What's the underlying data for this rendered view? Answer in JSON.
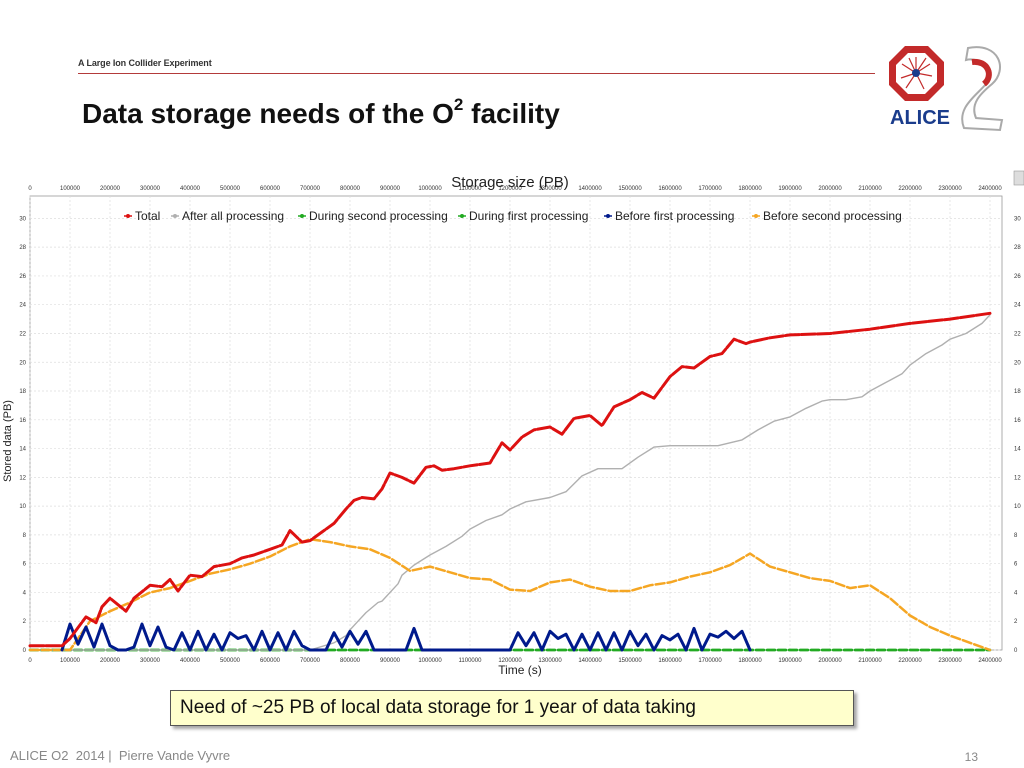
{
  "header": {
    "tagline": "A Large Ion Collider Experiment",
    "title_main": "Data storage needs of the O",
    "title_sup": "2",
    "title_tail": " facility",
    "logo_text": "ALICE"
  },
  "callout": "Need of ~25 PB of local data storage for 1 year of data taking",
  "footer": {
    "left": "ALICE O2  2014 |  Pierre Vande Vyvre",
    "page": "13"
  },
  "colors": {
    "accent": "#b33a3a",
    "total": "#dd1111",
    "after": "#b0b0b0",
    "second": "#22aa22",
    "first": "#22aa22",
    "before_first": "#001a8c",
    "before_second": "#f5a623"
  },
  "chart_data": {
    "type": "line",
    "title": "Storage size (PB)",
    "xlabel": "Time (s)",
    "ylabel": "Stored data (PB)",
    "xlim": [
      0,
      2430000
    ],
    "ylim": [
      0,
      31
    ],
    "x_ticks": [
      0,
      100000,
      200000,
      300000,
      400000,
      500000,
      600000,
      700000,
      800000,
      900000,
      1000000,
      1100000,
      1200000,
      1300000,
      1400000,
      1500000,
      1600000,
      1700000,
      1800000,
      1900000,
      2000000,
      2100000,
      2200000,
      2300000,
      2400000
    ],
    "y_ticks": [
      0,
      2,
      4,
      6,
      8,
      10,
      12,
      14,
      16,
      18,
      20,
      22,
      24,
      26,
      28,
      30
    ],
    "grid": true,
    "legend_position": "top",
    "series": [
      {
        "name": "Total",
        "x": [
          0,
          50000,
          60000,
          80000,
          100000,
          140000,
          165000,
          180000,
          200000,
          240000,
          260000,
          300000,
          330000,
          350000,
          370000,
          400000,
          430000,
          460000,
          500000,
          530000,
          560000,
          600000,
          630000,
          650000,
          680000,
          700000,
          730000,
          760000,
          790000,
          810000,
          830000,
          860000,
          880000,
          900000,
          930000,
          960000,
          990000,
          1010000,
          1030000,
          1060000,
          1100000,
          1150000,
          1180000,
          1200000,
          1230000,
          1260000,
          1300000,
          1330000,
          1360000,
          1400000,
          1430000,
          1460000,
          1500000,
          1530000,
          1560000,
          1600000,
          1630000,
          1660000,
          1700000,
          1730000,
          1760000,
          1790000,
          1800000,
          1850000,
          1900000,
          2000000,
          2100000,
          2200000,
          2300000,
          2400000
        ],
        "y": [
          0.3,
          0.3,
          0.3,
          0.3,
          0.8,
          2.3,
          1.9,
          3.0,
          3.6,
          2.7,
          3.6,
          4.5,
          4.4,
          4.9,
          4.1,
          5.2,
          5.1,
          5.8,
          6.0,
          6.4,
          6.6,
          7.0,
          7.3,
          8.3,
          7.5,
          7.6,
          8.2,
          8.8,
          9.8,
          10.4,
          10.6,
          10.5,
          11.2,
          12.3,
          12.0,
          11.6,
          12.7,
          12.8,
          12.5,
          12.6,
          12.8,
          13.0,
          14.4,
          13.9,
          14.8,
          15.3,
          15.5,
          15.0,
          16.1,
          16.3,
          15.6,
          16.9,
          17.4,
          17.9,
          17.5,
          19.0,
          19.7,
          19.6,
          20.4,
          20.6,
          21.6,
          21.3,
          21.4,
          21.7,
          21.9,
          22.0,
          22.3,
          22.7,
          23.0,
          23.4
        ]
      },
      {
        "name": "After all processing",
        "x": [
          0,
          700000,
          760000,
          790000,
          800000,
          820000,
          840000,
          870000,
          880000,
          920000,
          930000,
          960000,
          1000000,
          1040000,
          1080000,
          1100000,
          1140000,
          1180000,
          1200000,
          1240000,
          1300000,
          1340000,
          1380000,
          1420000,
          1480000,
          1520000,
          1560000,
          1600000,
          1640000,
          1680000,
          1720000,
          1780000,
          1820000,
          1860000,
          1900000,
          1940000,
          1980000,
          2000000,
          2040000,
          2080000,
          2100000,
          2140000,
          2180000,
          2200000,
          2240000,
          2280000,
          2300000,
          2340000,
          2380000,
          2400000
        ],
        "y": [
          0,
          0,
          0.5,
          1.0,
          1.4,
          2.0,
          2.6,
          3.3,
          3.4,
          4.6,
          5.2,
          5.9,
          6.6,
          7.2,
          7.9,
          8.4,
          9.0,
          9.4,
          9.8,
          10.3,
          10.6,
          11.0,
          12.1,
          12.6,
          12.6,
          13.4,
          14.1,
          14.2,
          14.2,
          14.2,
          14.2,
          14.6,
          15.3,
          15.9,
          16.2,
          16.8,
          17.3,
          17.4,
          17.4,
          17.6,
          18.0,
          18.6,
          19.2,
          19.8,
          20.6,
          21.2,
          21.6,
          22.0,
          22.7,
          23.3
        ]
      },
      {
        "name": "During second processing",
        "x": [
          0,
          2400000
        ],
        "y": [
          0,
          0
        ]
      },
      {
        "name": "During first processing",
        "x": [
          0,
          2400000
        ],
        "y": [
          0,
          0
        ]
      },
      {
        "name": "Before first processing",
        "x": [
          80000,
          100000,
          120000,
          140000,
          160000,
          180000,
          200000,
          220000,
          240000,
          260000,
          280000,
          300000,
          320000,
          340000,
          360000,
          380000,
          400000,
          420000,
          440000,
          460000,
          480000,
          500000,
          520000,
          540000,
          560000,
          580000,
          600000,
          620000,
          640000,
          660000,
          680000,
          700000,
          720000,
          740000,
          760000,
          780000,
          800000,
          820000,
          840000,
          860000,
          880000,
          900000,
          920000,
          940000,
          960000,
          980000,
          1000000,
          1020000,
          1040000,
          1060000,
          1080000,
          1100000,
          1120000,
          1140000,
          1160000,
          1180000,
          1200000,
          1220000,
          1240000,
          1260000,
          1280000,
          1300000,
          1320000,
          1340000,
          1360000,
          1380000,
          1400000,
          1420000,
          1440000,
          1460000,
          1480000,
          1500000,
          1520000,
          1540000,
          1560000,
          1580000,
          1600000,
          1620000,
          1640000,
          1660000,
          1680000,
          1700000,
          1720000,
          1740000,
          1760000,
          1780000,
          1800000
        ],
        "y": [
          0,
          1.8,
          0.4,
          1.6,
          0.2,
          1.8,
          0.3,
          0,
          0,
          0.2,
          1.8,
          0.3,
          1.6,
          0.2,
          0,
          1.2,
          0,
          1.3,
          0,
          1.1,
          0,
          1.2,
          0.8,
          1.0,
          0,
          1.3,
          0,
          1.2,
          0,
          1.3,
          0.3,
          0,
          0,
          0,
          1.2,
          0.2,
          1.3,
          0.4,
          1.3,
          0,
          0,
          0,
          0,
          0,
          1.5,
          0,
          0,
          0,
          0,
          0,
          0,
          0,
          0,
          0,
          0,
          0,
          0,
          1.2,
          0.3,
          1.2,
          0,
          1.3,
          0.8,
          1.1,
          0,
          1.1,
          0,
          1.2,
          0,
          1.2,
          0,
          1.3,
          0.3,
          1.1,
          0,
          1.0,
          0.7,
          1.1,
          0,
          1.5,
          0,
          1.1,
          0.9,
          1.3,
          0.8,
          1.3,
          0
        ]
      },
      {
        "name": "Before second processing",
        "x": [
          0,
          100000,
          150000,
          200000,
          250000,
          300000,
          350000,
          400000,
          450000,
          500000,
          550000,
          600000,
          650000,
          700000,
          750000,
          800000,
          850000,
          900000,
          950000,
          1000000,
          1050000,
          1100000,
          1150000,
          1200000,
          1250000,
          1300000,
          1350000,
          1400000,
          1450000,
          1500000,
          1550000,
          1600000,
          1650000,
          1700000,
          1750000,
          1800000,
          1850000,
          1900000,
          1950000,
          2000000,
          2050000,
          2100000,
          2150000,
          2200000,
          2250000,
          2300000,
          2350000,
          2400000
        ],
        "y": [
          0,
          0,
          2.0,
          2.7,
          3.3,
          4.0,
          4.3,
          4.8,
          5.3,
          5.6,
          6.0,
          6.5,
          7.2,
          7.7,
          7.5,
          7.2,
          7.0,
          6.4,
          5.5,
          5.8,
          5.4,
          5.0,
          4.9,
          4.2,
          4.1,
          4.7,
          4.9,
          4.4,
          4.1,
          4.1,
          4.5,
          4.7,
          5.1,
          5.4,
          5.9,
          6.7,
          5.8,
          5.4,
          5.0,
          4.8,
          4.3,
          4.5,
          3.6,
          2.4,
          1.6,
          1.0,
          0.5,
          0
        ]
      }
    ]
  }
}
